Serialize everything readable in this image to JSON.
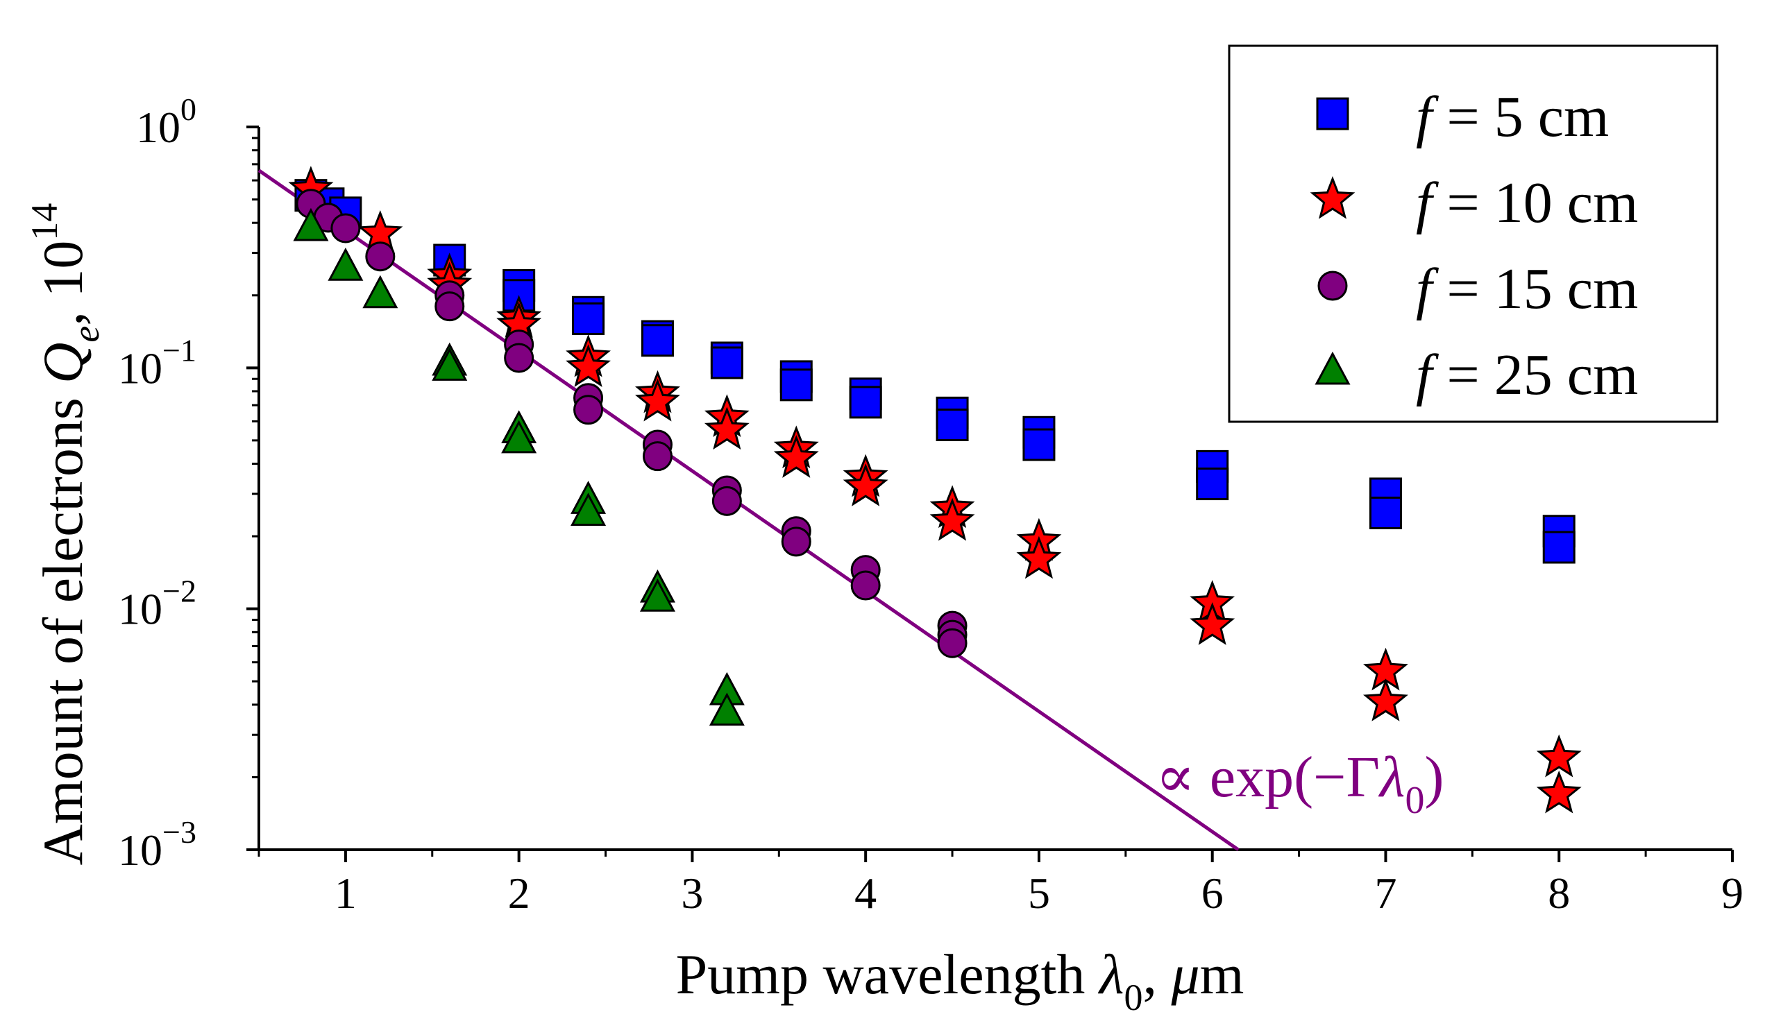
{
  "chart_data": {
    "type": "scatter",
    "title": "",
    "xlabel": "Pump wavelength λ0, μm",
    "xlabel_parts": {
      "main": "Pump wavelength ",
      "symbol": "λ",
      "sub": "0",
      "rest": ", ",
      "mu": "μ",
      "unit": "m"
    },
    "ylabel": "Amount of electrons Qe, 10^14",
    "ylabel_parts": {
      "main": "Amount of electrons ",
      "symbol": "Q",
      "sub": "e",
      "rest": ", 10",
      "sup": "14"
    },
    "xlim": [
      0.5,
      9
    ],
    "ylim": [
      0.001,
      1
    ],
    "yscale": "log",
    "x_ticks": [
      1,
      2,
      3,
      4,
      5,
      6,
      7,
      8,
      9
    ],
    "x_tick_labels": [
      "1",
      "2",
      "3",
      "4",
      "5",
      "6",
      "7",
      "8",
      "9"
    ],
    "y_ticks": [
      1,
      0.1,
      0.01,
      0.001
    ],
    "y_tick_labels": [
      {
        "base": "10",
        "exp": "0"
      },
      {
        "base": "10",
        "exp": "−1"
      },
      {
        "base": "10",
        "exp": "−2"
      },
      {
        "base": "10",
        "exp": "−3"
      }
    ],
    "legend_position": "top-right",
    "series": [
      {
        "name": "f = 5 cm",
        "var": "f",
        "eq": " = 5 cm",
        "marker": "square",
        "color": "#0000ff",
        "points": [
          [
            0.8,
            0.52
          ],
          [
            0.9,
            0.48
          ],
          [
            1.0,
            0.44
          ],
          [
            1.6,
            0.28
          ],
          [
            2.0,
            0.22
          ],
          [
            2.0,
            0.2
          ],
          [
            2.4,
            0.17
          ],
          [
            2.4,
            0.16
          ],
          [
            2.8,
            0.135
          ],
          [
            2.8,
            0.13
          ],
          [
            3.2,
            0.11
          ],
          [
            3.2,
            0.105
          ],
          [
            3.6,
            0.092
          ],
          [
            3.6,
            0.085
          ],
          [
            4.0,
            0.078
          ],
          [
            4.0,
            0.072
          ],
          [
            4.5,
            0.065
          ],
          [
            4.5,
            0.058
          ],
          [
            5.0,
            0.054
          ],
          [
            5.0,
            0.048
          ],
          [
            6.0,
            0.039
          ],
          [
            6.0,
            0.033
          ],
          [
            7.0,
            0.03
          ],
          [
            7.0,
            0.025
          ],
          [
            8.0,
            0.021
          ],
          [
            8.0,
            0.018
          ]
        ]
      },
      {
        "name": "f = 10 cm",
        "var": "f",
        "eq": " = 10 cm",
        "marker": "star",
        "color": "#ff0000",
        "points": [
          [
            0.8,
            0.55
          ],
          [
            1.2,
            0.36
          ],
          [
            1.6,
            0.24
          ],
          [
            1.6,
            0.22
          ],
          [
            2.0,
            0.16
          ],
          [
            2.0,
            0.15
          ],
          [
            2.4,
            0.11
          ],
          [
            2.4,
            0.1
          ],
          [
            2.8,
            0.078
          ],
          [
            2.8,
            0.072
          ],
          [
            3.2,
            0.062
          ],
          [
            3.2,
            0.055
          ],
          [
            3.6,
            0.046
          ],
          [
            3.6,
            0.042
          ],
          [
            4.0,
            0.035
          ],
          [
            4.0,
            0.032
          ],
          [
            4.5,
            0.026
          ],
          [
            4.5,
            0.023
          ],
          [
            5.0,
            0.019
          ],
          [
            5.0,
            0.016
          ],
          [
            6.0,
            0.0105
          ],
          [
            6.0,
            0.0085
          ],
          [
            7.0,
            0.0055
          ],
          [
            7.0,
            0.0041
          ],
          [
            8.0,
            0.0024
          ],
          [
            8.0,
            0.0017
          ]
        ]
      },
      {
        "name": "f = 15 cm",
        "var": "f",
        "eq": " = 15 cm",
        "marker": "circle",
        "color": "#800080",
        "points": [
          [
            0.8,
            0.48
          ],
          [
            0.9,
            0.42
          ],
          [
            1.0,
            0.38
          ],
          [
            1.2,
            0.29
          ],
          [
            1.6,
            0.2
          ],
          [
            1.6,
            0.18
          ],
          [
            2.0,
            0.125
          ],
          [
            2.0,
            0.11
          ],
          [
            2.4,
            0.075
          ],
          [
            2.4,
            0.067
          ],
          [
            2.8,
            0.048
          ],
          [
            2.8,
            0.043
          ],
          [
            3.2,
            0.031
          ],
          [
            3.2,
            0.028
          ],
          [
            3.6,
            0.021
          ],
          [
            3.6,
            0.019
          ],
          [
            4.0,
            0.0145
          ],
          [
            4.0,
            0.0125
          ],
          [
            4.5,
            0.0085
          ],
          [
            4.5,
            0.0078
          ],
          [
            4.5,
            0.0072
          ]
        ]
      },
      {
        "name": "f = 25 cm",
        "var": "f",
        "eq": " = 25 cm",
        "marker": "triangle",
        "color": "#008000",
        "points": [
          [
            0.8,
            0.38
          ],
          [
            1.0,
            0.26
          ],
          [
            1.2,
            0.2
          ],
          [
            1.6,
            0.105
          ],
          [
            1.6,
            0.1
          ],
          [
            2.0,
            0.055
          ],
          [
            2.0,
            0.05
          ],
          [
            2.4,
            0.028
          ],
          [
            2.4,
            0.025
          ],
          [
            2.8,
            0.012
          ],
          [
            2.8,
            0.011
          ],
          [
            3.2,
            0.0045
          ],
          [
            3.2,
            0.0037
          ]
        ]
      }
    ],
    "fit_line": {
      "label_prefix": "∝ exp(−Γ",
      "label_symbol": "λ",
      "label_sub": "0",
      "label_suffix": ")",
      "color": "#800080",
      "x": [
        0.5,
        6.15
      ],
      "y": [
        0.66,
        0.001
      ]
    }
  }
}
